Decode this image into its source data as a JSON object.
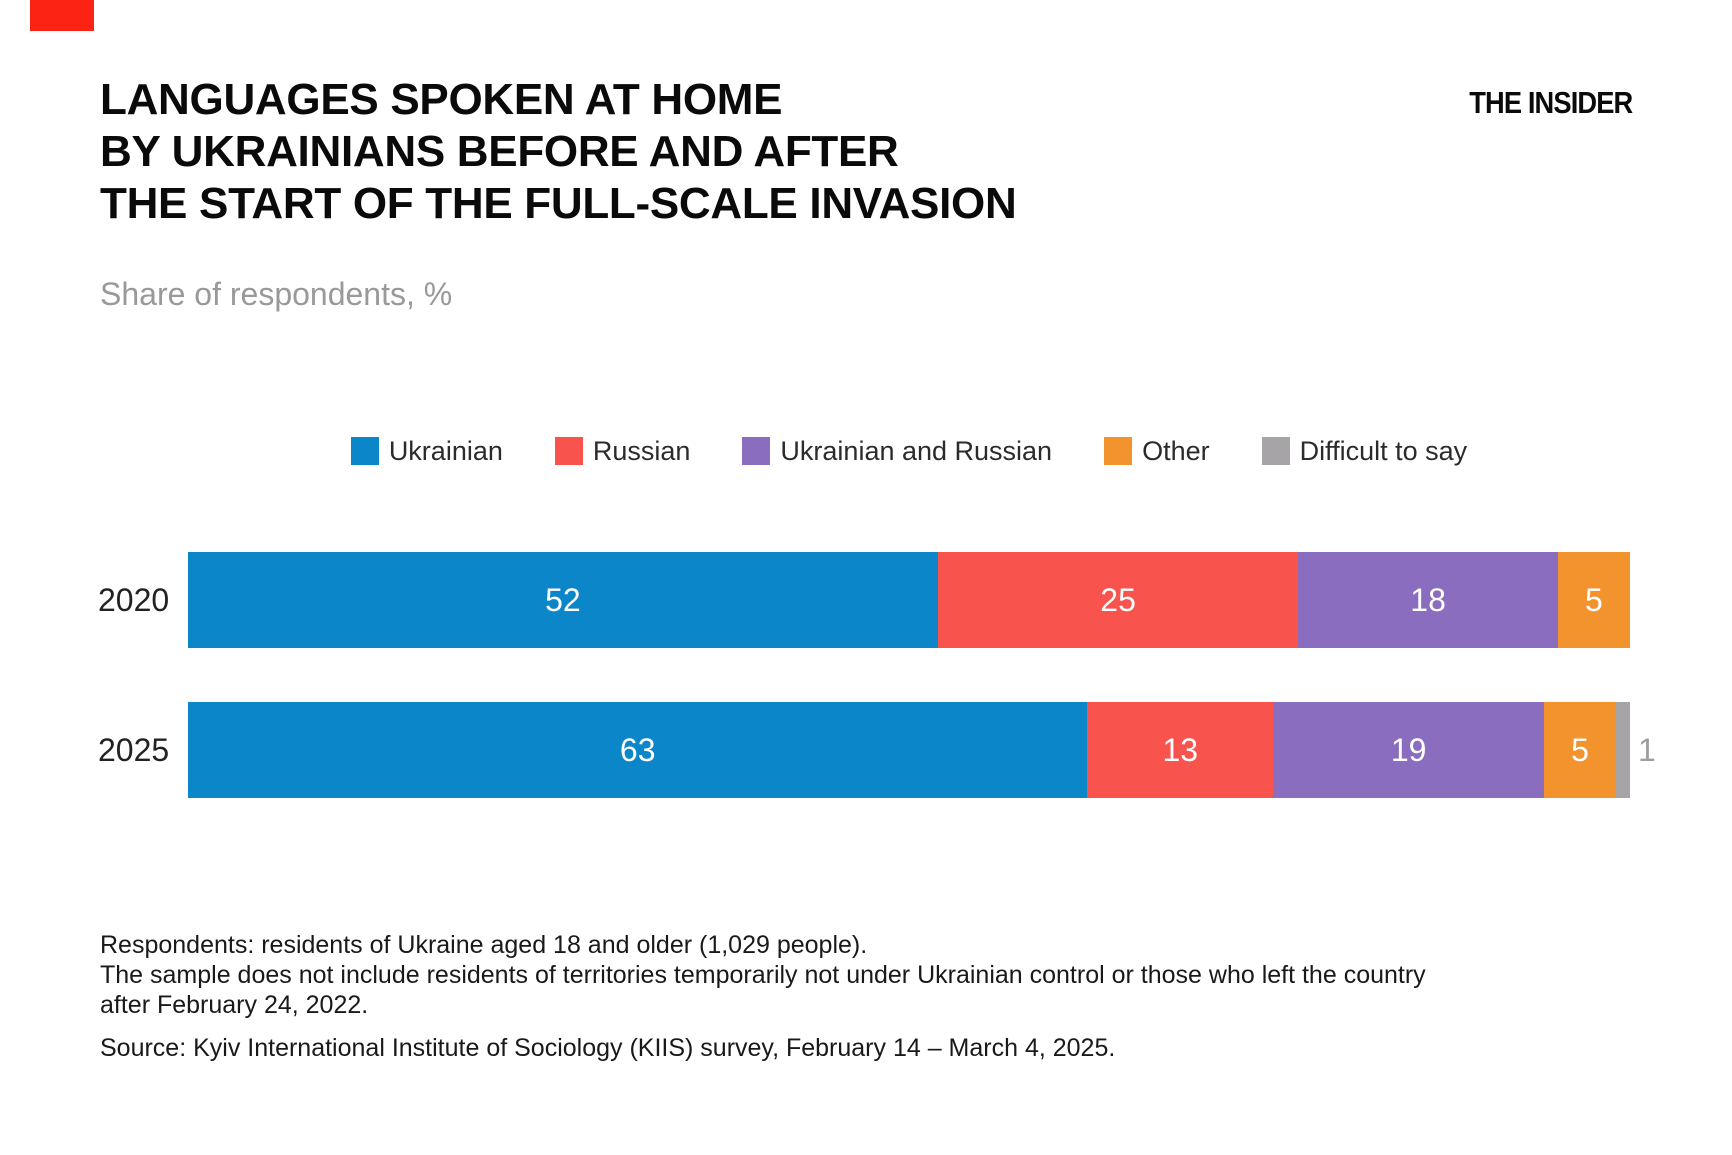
{
  "brand": {
    "logo_text": "THE INSIDER",
    "mark_color": "#FC2315"
  },
  "header": {
    "title_lines": [
      "LANGUAGES SPOKEN AT HOME",
      "BY UKRAINIANS BEFORE AND AFTER",
      "THE START OF THE FULL-SCALE INVASION"
    ],
    "subtitle": "Share of respondents, %"
  },
  "chart_data": {
    "type": "bar",
    "stacked": true,
    "orientation": "horizontal",
    "unit": "%",
    "title": "Languages spoken at home by Ukrainians before and after the start of the full-scale invasion",
    "categories": [
      "2020",
      "2025"
    ],
    "series": [
      {
        "name": "Ukrainian",
        "color": "#0B86C9",
        "values": [
          52,
          63
        ]
      },
      {
        "name": "Russian",
        "color": "#F9534E",
        "values": [
          25,
          13
        ]
      },
      {
        "name": "Ukrainian and Russian",
        "color": "#8B6DC0",
        "values": [
          18,
          19
        ]
      },
      {
        "name": "Other",
        "color": "#F2932E",
        "values": [
          5,
          5
        ]
      },
      {
        "name": "Difficult to say",
        "color": "#A7A4A7",
        "values": [
          0,
          1
        ]
      }
    ],
    "legend_position": "top",
    "value_labels": "inside",
    "small_value_label_color": "#9E9E9E",
    "grid": false
  },
  "footer": {
    "note_lines": [
      "Respondents: residents of Ukraine aged 18 and older (1,029 people).",
      "The sample does not include residents of territories temporarily not under Ukrainian control or those who left the country",
      "after February 24, 2022."
    ],
    "source": "Source: Kyiv International Institute of Sociology (KIIS) survey, February 14 – March 4, 2025."
  }
}
